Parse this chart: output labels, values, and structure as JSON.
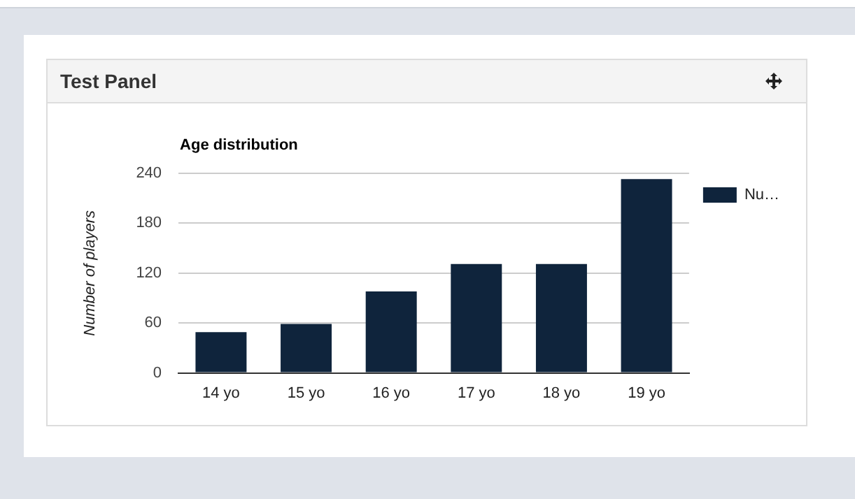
{
  "chart_data": {
    "type": "bar",
    "title": "Age distribution",
    "ylabel": "Number of players",
    "annotations": [
      "Test Panel"
    ],
    "categories": [
      "14 yo",
      "15 yo",
      "16 yo",
      "17 yo",
      "18 yo",
      "19 yo"
    ],
    "series": [
      {
        "name": "Nu…",
        "color": "#0f243c",
        "values": [
          49,
          59,
          98,
          131,
          131,
          233
        ]
      }
    ],
    "ylim": [
      0,
      240
    ],
    "yticks": [
      0,
      60,
      120,
      180,
      240
    ],
    "grid": "y",
    "legend": "top right"
  }
}
